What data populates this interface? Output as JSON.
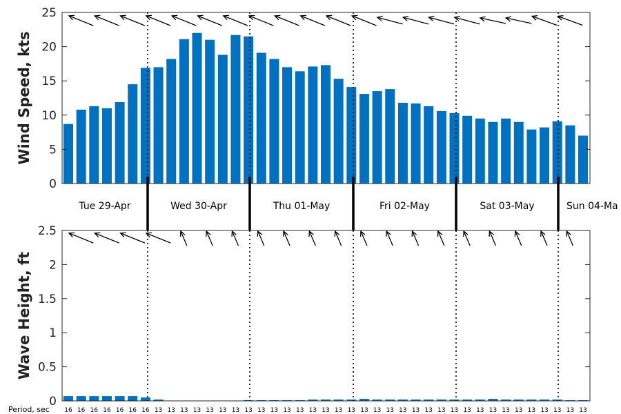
{
  "chart_data": [
    {
      "type": "bar",
      "ylabel": "Wind Speed, kts",
      "ylim": [
        0,
        25
      ],
      "yticks": [
        0,
        5,
        10,
        15,
        20,
        25
      ],
      "bar_color": "#0070c0",
      "values": [
        8.7,
        10.8,
        11.3,
        11.0,
        11.9,
        14.5,
        16.9,
        17.0,
        18.2,
        21.1,
        22.0,
        21.0,
        18.8,
        21.7,
        21.5,
        19.1,
        18.2,
        17.0,
        16.4,
        17.1,
        17.3,
        15.3,
        14.1,
        13.1,
        13.5,
        13.8,
        11.8,
        11.7,
        11.3,
        10.6,
        10.3,
        9.9,
        9.5,
        9.0,
        9.5,
        9.0,
        7.9,
        8.2,
        9.1,
        8.5,
        7.0
      ],
      "direction_arrows_deg": [
        -22,
        -22,
        -22,
        -22,
        -22,
        -22,
        -22,
        -22,
        -22,
        -22,
        -22,
        -22,
        -22,
        -22,
        -22,
        -22,
        -22,
        -22,
        -22,
        -22,
        -22,
        -22,
        -22,
        -22,
        -15,
        -15,
        -15,
        -15,
        -15,
        -15,
        -15,
        -15,
        -12,
        -12,
        -12,
        -12,
        -12,
        -20,
        -20,
        -20,
        -20
      ],
      "grid": false
    },
    {
      "type": "bar",
      "ylabel": "Wave Height, ft",
      "ylim": [
        0,
        2.5
      ],
      "yticks": [
        "0",
        "0.5",
        "1",
        "1.5",
        "2",
        "2.5"
      ],
      "bar_color": "#0070c0",
      "values": [
        0.07,
        0.07,
        0.07,
        0.07,
        0.07,
        0.07,
        0.05,
        0.02,
        0.0,
        0.0,
        0.0,
        0.0,
        0.0,
        0.0,
        0.01,
        0.01,
        0.01,
        0.01,
        0.01,
        0.02,
        0.02,
        0.02,
        0.02,
        0.03,
        0.02,
        0.02,
        0.02,
        0.02,
        0.02,
        0.02,
        0.02,
        0.02,
        0.02,
        0.03,
        0.02,
        0.02,
        0.02,
        0.02,
        0.02,
        0.01,
        0.01
      ],
      "direction_arrows_deg": [
        -22,
        -22,
        -22,
        -22,
        -22,
        -22,
        -22,
        -22,
        -60,
        -60,
        -60,
        -60,
        -60,
        -60,
        -60,
        -60,
        -60,
        -60,
        -60,
        -60,
        -60,
        -60,
        -60,
        -60,
        -60,
        -60,
        -60,
        -60,
        -60,
        -60,
        -60,
        -60,
        -60,
        -60,
        -60,
        -60,
        -60,
        -60,
        -60,
        -60,
        -60
      ],
      "wind_arrow_indices": [
        1,
        3,
        5,
        7,
        9,
        11,
        13,
        15,
        17,
        19,
        21,
        23,
        25,
        27,
        29,
        31,
        33,
        35,
        37,
        39,
        41
      ],
      "period_label": "Period, sec",
      "periods": [
        "16",
        "16",
        "16",
        "16",
        "16",
        "16",
        "16",
        "13",
        "13",
        "13",
        "13",
        "13",
        "13",
        "13",
        "13",
        "13",
        "13",
        "13",
        "13",
        "13",
        "13",
        "13",
        "13",
        "13",
        "13",
        "13",
        "13",
        "13",
        "13",
        "13",
        "13",
        "13",
        "13",
        "13",
        "13",
        "13",
        "13",
        "13",
        "13",
        "13",
        "13"
      ],
      "grid": false
    }
  ],
  "days": [
    "Tue 29-Apr",
    "Wed 30-Apr",
    "Thu 01-May",
    "Fri 02-May",
    "Sat 03-May",
    "Sun 04-Ma"
  ],
  "day_boundary_after_index": [
    5,
    13,
    21,
    29,
    37
  ]
}
